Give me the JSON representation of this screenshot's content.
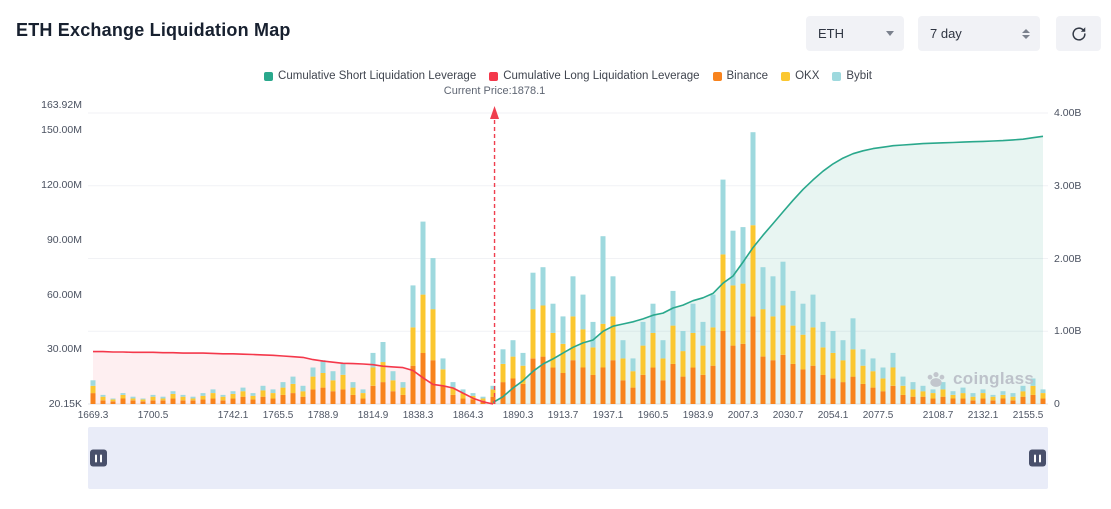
{
  "header": {
    "title": "ETH Exchange Liquidation Map",
    "symbol_select": {
      "value": "ETH"
    },
    "period_select": {
      "value": "7 day"
    }
  },
  "legend": [
    {
      "label": "Cumulative Short Liquidation Leverage",
      "color": "#2aa88c"
    },
    {
      "label": "Cumulative Long Liquidation Leverage",
      "color": "#f4384b"
    },
    {
      "label": "Binance",
      "color": "#f8831d"
    },
    {
      "label": "OKX",
      "color": "#fbc730"
    },
    {
      "label": "Bybit",
      "color": "#9ed9de"
    }
  ],
  "current_price": {
    "label": "Current Price:1878.1",
    "value": 1878.1
  },
  "watermark": "coinglass",
  "chart_data": {
    "type": "bar",
    "title": "ETH Exchange Liquidation Map",
    "x_start": 1669.3,
    "x_step": 5.2,
    "current_price": 1878.1,
    "bar_unit": "M",
    "line_unit": "B",
    "left_axis": {
      "max": 163.92,
      "ticks": [
        {
          "label": "163.92M",
          "value": 163.92
        },
        {
          "label": "150.00M",
          "value": 150
        },
        {
          "label": "120.00M",
          "value": 120
        },
        {
          "label": "90.00M",
          "value": 90
        },
        {
          "label": "60.00M",
          "value": 60
        },
        {
          "label": "30.00M",
          "value": 30
        },
        {
          "label": "20.15K",
          "value": 0.02
        }
      ]
    },
    "right_axis": {
      "max": 4,
      "ticks": [
        {
          "label": "4.00B",
          "value": 4
        },
        {
          "label": "3.00B",
          "value": 3
        },
        {
          "label": "2.00B",
          "value": 2
        },
        {
          "label": "1.00B",
          "value": 1
        },
        {
          "label": "0",
          "value": 0
        }
      ]
    },
    "x_axis": {
      "ticks": [
        1669.3,
        1700.5,
        1742.1,
        1765.5,
        1788.9,
        1814.9,
        1838.3,
        1864.3,
        1890.3,
        1913.7,
        1937.1,
        1960.5,
        1983.9,
        2007.3,
        2030.7,
        2054.1,
        2077.5,
        2108.7,
        2132.1,
        2155.5
      ]
    },
    "series": [
      {
        "name": "Binance",
        "color": "#f8831d",
        "values": [
          6,
          2,
          1.5,
          3,
          2,
          1.5,
          2,
          2,
          3,
          2,
          2,
          2.5,
          3,
          2,
          3,
          4,
          2.5,
          4,
          3,
          5,
          6,
          4,
          8,
          9,
          7,
          8,
          5,
          3,
          10,
          12,
          7,
          5,
          21,
          28,
          24,
          10,
          5,
          3,
          2.5,
          2,
          4,
          12,
          14,
          11,
          25,
          26,
          20,
          17,
          24,
          20,
          16,
          20,
          24,
          13,
          9,
          16,
          20,
          13,
          22,
          15,
          20,
          16,
          21,
          40,
          32,
          33,
          48,
          26,
          24,
          27,
          22,
          19,
          21,
          16,
          14,
          12,
          15,
          11,
          9,
          7,
          10,
          5,
          4,
          4,
          3,
          4,
          3,
          3,
          2,
          3,
          2,
          3,
          2,
          4,
          5,
          3
        ]
      },
      {
        "name": "OKX",
        "color": "#fbc730",
        "values": [
          4,
          2,
          1,
          2,
          1,
          1,
          2,
          1,
          2.5,
          2,
          1,
          2,
          3,
          2,
          2.5,
          3,
          2,
          3.5,
          3,
          4,
          5,
          3,
          7,
          8,
          6,
          8,
          4,
          3,
          10,
          11,
          6,
          4,
          21,
          32,
          28,
          9,
          4,
          3,
          2,
          1,
          4,
          10,
          12,
          10,
          27,
          28,
          19,
          16,
          24,
          21,
          15,
          24,
          24,
          12,
          9,
          16,
          19,
          12,
          21,
          14,
          19,
          16,
          21,
          42,
          33,
          33,
          50,
          26,
          24,
          27,
          21,
          19,
          21,
          15,
          14,
          12,
          15,
          10,
          9,
          7,
          10,
          5,
          4,
          3,
          3,
          4,
          2,
          3,
          2,
          3,
          2,
          2,
          2,
          3,
          5,
          3
        ]
      },
      {
        "name": "Bybit",
        "color": "#9ed9de",
        "values": [
          3,
          1,
          0.5,
          1,
          1,
          0.5,
          1,
          1,
          1.5,
          1,
          1,
          1.5,
          2,
          1,
          1.5,
          2,
          1.5,
          2.5,
          2,
          3,
          4,
          3,
          5,
          7,
          5,
          6,
          3,
          2,
          8,
          11,
          5,
          3,
          23,
          40,
          28,
          6,
          3,
          2,
          1.5,
          1,
          2,
          8,
          9,
          7,
          20,
          21,
          16,
          15,
          22,
          19,
          14,
          48,
          22,
          10,
          7,
          13,
          16,
          10,
          19,
          11,
          16,
          13,
          18,
          41,
          30,
          31,
          51,
          23,
          22,
          24,
          19,
          17,
          18,
          14,
          12,
          11,
          17,
          9,
          7,
          6,
          8,
          5,
          4,
          3,
          2,
          4,
          2,
          3,
          2,
          2,
          1,
          2,
          2,
          3,
          4,
          2
        ]
      }
    ],
    "lines": [
      {
        "name": "Cumulative Long Liquidation Leverage",
        "color": "#f4384b",
        "fill": "rgba(244,56,75,0.08)",
        "axis": "right",
        "start_index": 0,
        "values": [
          0.72,
          0.72,
          0.715,
          0.715,
          0.71,
          0.71,
          0.71,
          0.705,
          0.705,
          0.7,
          0.7,
          0.7,
          0.695,
          0.69,
          0.69,
          0.685,
          0.68,
          0.675,
          0.67,
          0.66,
          0.65,
          0.64,
          0.61,
          0.59,
          0.575,
          0.56,
          0.555,
          0.55,
          0.54,
          0.52,
          0.51,
          0.5,
          0.46,
          0.36,
          0.27,
          0.25,
          0.22,
          0.15,
          0.08,
          0.03,
          0.0
        ]
      },
      {
        "name": "Cumulative Short Liquidation Leverage",
        "color": "#2aa88c",
        "fill": "rgba(42,168,140,0.11)",
        "axis": "right",
        "start_index": 40,
        "values": [
          0.02,
          0.1,
          0.22,
          0.32,
          0.45,
          0.55,
          0.62,
          0.7,
          0.78,
          0.84,
          0.88,
          1.0,
          1.07,
          1.1,
          1.13,
          1.17,
          1.22,
          1.25,
          1.32,
          1.36,
          1.42,
          1.46,
          1.52,
          1.66,
          1.76,
          1.95,
          2.15,
          2.32,
          2.48,
          2.64,
          2.8,
          2.95,
          3.08,
          3.2,
          3.3,
          3.38,
          3.44,
          3.48,
          3.51,
          3.53,
          3.55,
          3.56,
          3.57,
          3.58,
          3.585,
          3.59,
          3.595,
          3.6,
          3.605,
          3.61,
          3.615,
          3.62,
          3.63,
          3.64,
          3.66,
          3.68
        ]
      }
    ]
  }
}
